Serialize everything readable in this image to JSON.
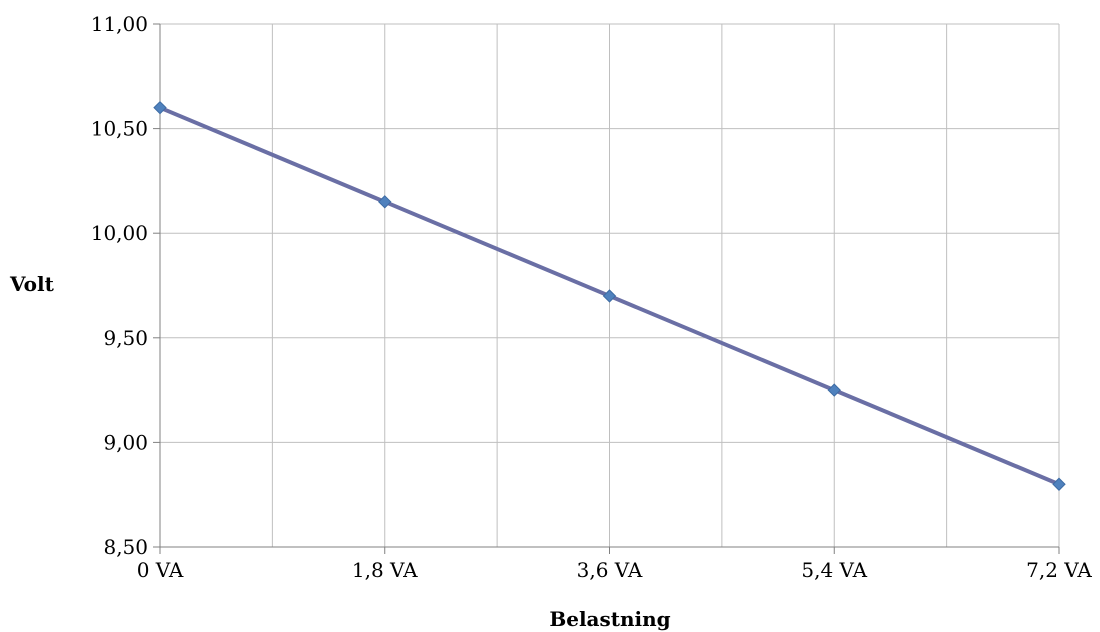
{
  "chart_data": {
    "type": "line",
    "title": "",
    "xlabel": "Belastning",
    "ylabel": "Volt",
    "categories": [
      "0 VA",
      "1,8 VA",
      "3,6 VA",
      "5,4 VA",
      "7,2 VA"
    ],
    "series": [
      {
        "values": [
          10.6,
          10.15,
          9.7,
          9.25,
          8.8
        ]
      }
    ],
    "ylim": [
      8.5,
      11.0
    ],
    "yticks": [
      "8,50",
      "9,00",
      "9,50",
      "10,00",
      "10,50",
      "11,00"
    ],
    "grid": true,
    "legend": "none",
    "colors": {
      "line": "#6a6fa5",
      "marker": "#4f81bd",
      "grid": "#bfbfbf",
      "axis": "#808080"
    }
  }
}
